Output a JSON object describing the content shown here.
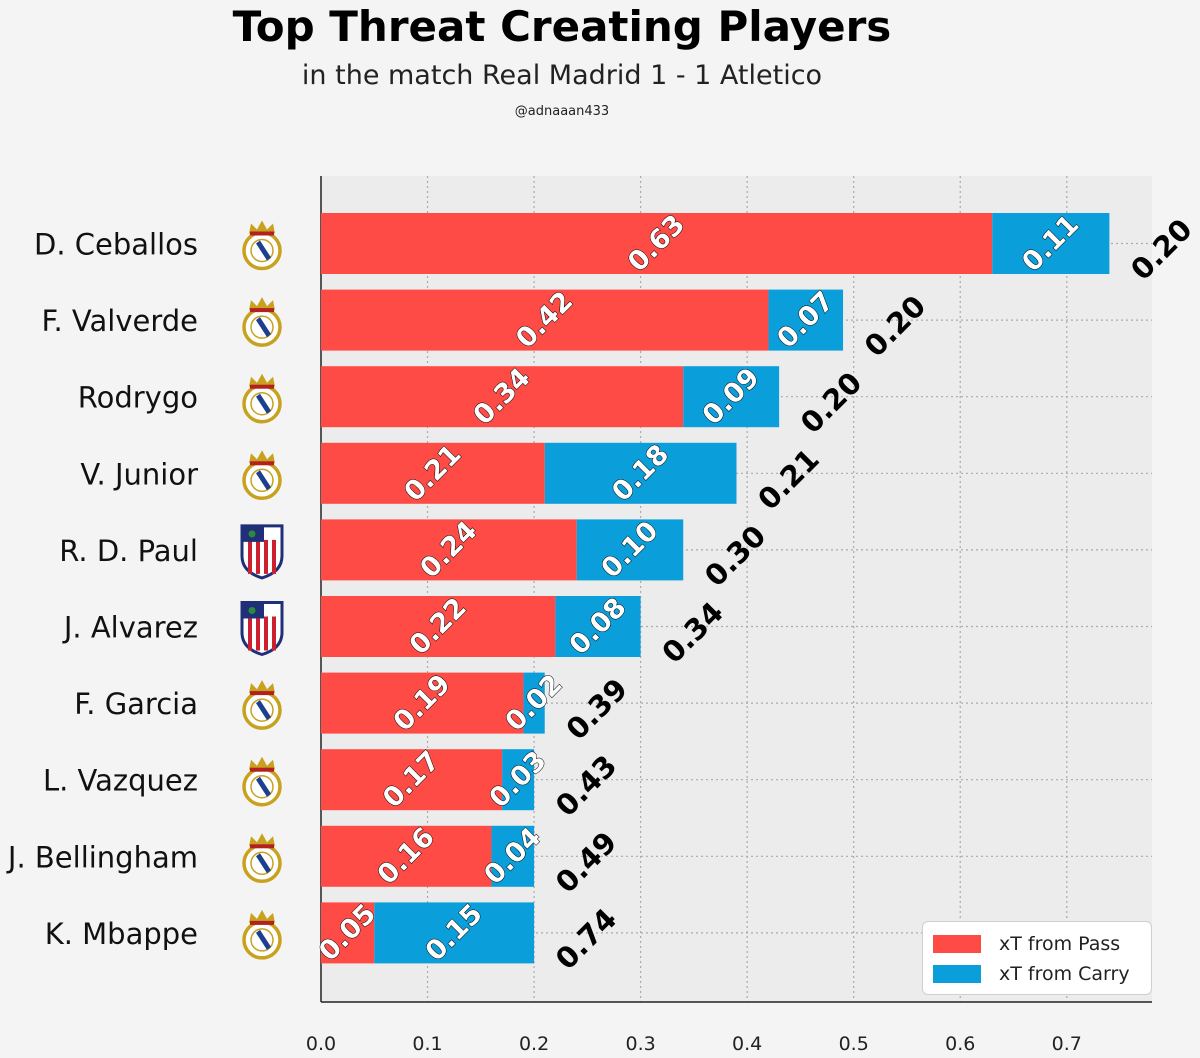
{
  "header": {
    "title": "Top Threat Creating Players",
    "subtitle": "in the match Real Madrid 1 - 1 Atletico",
    "credit": "@adnaaan433"
  },
  "colors": {
    "pass": "#ff4b45",
    "carry": "#0a9fdb",
    "plot_bg": "#ececec",
    "page_bg": "#f4f4f4",
    "grid": "#aaaaaa"
  },
  "legend": {
    "items": [
      {
        "label": "xT from Pass",
        "color": "#ff4b45"
      },
      {
        "label": "xT from Carry",
        "color": "#0a9fdb"
      }
    ]
  },
  "chart_data": {
    "type": "bar",
    "orientation": "horizontal",
    "stacked": true,
    "title": "Top Threat Creating Players",
    "subtitle": "in the match Real Madrid 1 - 1 Atletico",
    "categories": [
      "D. Ceballos",
      "F. Valverde",
      "Rodrygo",
      "V. Junior",
      "R. D. Paul",
      "J. Alvarez",
      "F. Garcia",
      "L. Vazquez",
      "J. Bellingham",
      "K. Mbappe"
    ],
    "teams": [
      "real-madrid",
      "real-madrid",
      "real-madrid",
      "real-madrid",
      "atletico",
      "atletico",
      "real-madrid",
      "real-madrid",
      "real-madrid",
      "real-madrid"
    ],
    "series": [
      {
        "name": "xT from Pass",
        "values": [
          0.63,
          0.42,
          0.34,
          0.21,
          0.24,
          0.22,
          0.19,
          0.17,
          0.16,
          0.05
        ],
        "labels": [
          "0.63",
          "0.42",
          "0.34",
          "0.21",
          "0.24",
          "0.22",
          "0.19",
          "0.17",
          "0.16",
          "0.05"
        ]
      },
      {
        "name": "xT from Carry",
        "values": [
          0.11,
          0.07,
          0.09,
          0.18,
          0.1,
          0.08,
          0.02,
          0.03,
          0.04,
          0.15
        ],
        "labels": [
          "0.11",
          "0.07",
          "0.09",
          "0.18",
          "0.10",
          "0.08",
          "0.02",
          "0.03",
          "0.04",
          "0.15"
        ]
      }
    ],
    "end_labels": [
      "0.20",
      "0.20",
      "0.20",
      "0.21",
      "0.30",
      "0.34",
      "0.39",
      "0.43",
      "0.49",
      "0.74"
    ],
    "xlim": [
      0,
      0.78
    ],
    "xticks": [
      0.0,
      0.1,
      0.2,
      0.3,
      0.4,
      0.5,
      0.6,
      0.7
    ],
    "xtick_labels": [
      "0.0",
      "0.1",
      "0.2",
      "0.3",
      "0.4",
      "0.5",
      "0.6",
      "0.7"
    ],
    "xlabel": "",
    "ylabel": "",
    "grid": true,
    "legend_position": "lower-right"
  }
}
